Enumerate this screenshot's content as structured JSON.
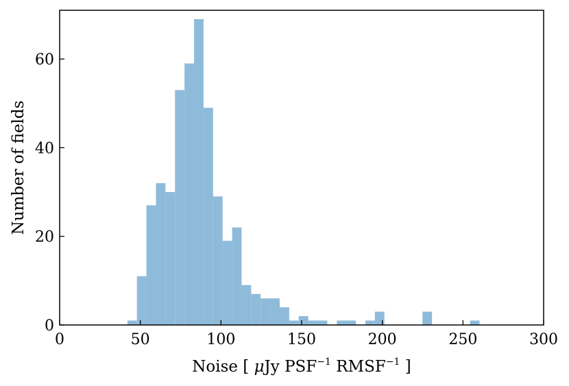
{
  "chart_data": {
    "type": "bar",
    "subtype": "histogram",
    "bin_width": 5.9,
    "bin_start": 42.0,
    "values": [
      1,
      11,
      27,
      32,
      30,
      53,
      59,
      69,
      49,
      29,
      19,
      22,
      9,
      7,
      6,
      6,
      4,
      1,
      2,
      1,
      1,
      0,
      1,
      1,
      0,
      1,
      3,
      0,
      0,
      0,
      0,
      3,
      0,
      0,
      0,
      0,
      1
    ],
    "xlim": [
      0,
      300
    ],
    "ylim": [
      0,
      71
    ],
    "xticks": [
      0,
      50,
      100,
      150,
      200,
      250,
      300
    ],
    "yticks": [
      0,
      20,
      40,
      60
    ],
    "xlabel": {
      "prefix": "Noise [ ",
      "mu": "μ",
      "unit1": "Jy PSF",
      "exp1": "−1",
      "unit2": " RMSF",
      "exp2": "−1",
      "suffix": " ]"
    },
    "ylabel": "Number of fields",
    "bar_color": "#8fbbdb",
    "grid": false
  }
}
